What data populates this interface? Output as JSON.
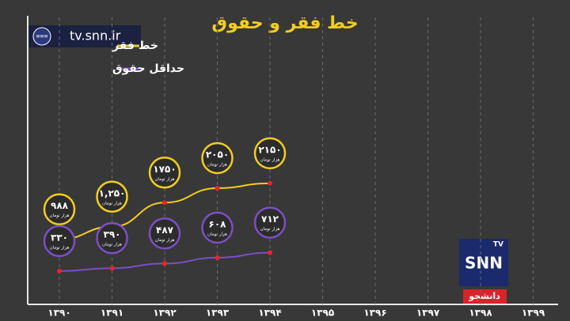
{
  "chart_data": {
    "type": "line",
    "title": "خط فقر و حقوق",
    "categories": [
      "۱۳۹۰",
      "۱۳۹۱",
      "۱۳۹۲",
      "۱۳۹۳",
      "۱۳۹۴",
      "۱۳۹۵",
      "۱۳۹۶",
      "۱۳۹۷",
      "۱۳۹۸",
      "۱۳۹۹"
    ],
    "series": [
      {
        "name": "خط فقر",
        "color": "#f2cd1f",
        "values": [
          988,
          1250,
          1750,
          2050,
          2150,
          null,
          null,
          null,
          null,
          null
        ],
        "value_labels": [
          "۹۸۸",
          "۱,۲۵۰",
          "۱۷۵۰",
          "۲۰۵۰",
          "۲۱۵۰",
          null,
          null,
          null,
          null,
          null
        ]
      },
      {
        "name": "حداقل حقوق",
        "color": "#7b4fc4",
        "values": [
          330,
          390,
          487,
          608,
          712,
          null,
          null,
          null,
          null,
          null
        ],
        "value_labels": [
          "۳۳۰",
          "۳۹۰",
          "۴۸۷",
          "۶۰۸",
          "۷۱۲",
          null,
          null,
          null,
          null,
          null
        ]
      }
    ],
    "unit_label": "هزار تومان",
    "point_color": "#e8242c",
    "grid": true,
    "legend": "top-left"
  },
  "watermark": {
    "icon": "www",
    "url": "tv.snn.ir"
  },
  "logo": {
    "badge": "TV",
    "name": "SNN",
    "caption": "دانشجو"
  }
}
